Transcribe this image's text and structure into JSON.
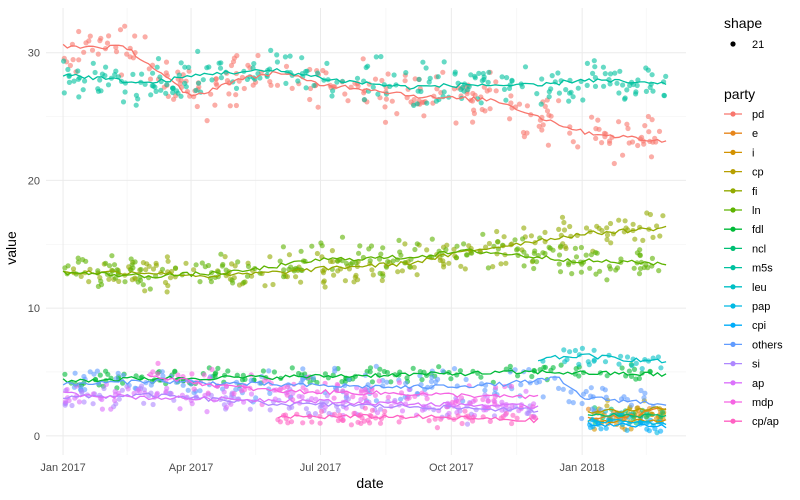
{
  "chart_data": {
    "type": "scatter",
    "xlabel": "date",
    "ylabel": "value",
    "x_ticks": [
      "Jan 2017",
      "Apr 2017",
      "Jul 2017",
      "Oct 2017",
      "Jan 2018"
    ],
    "x_tick_dates": [
      "2017-01-01",
      "2017-04-01",
      "2017-07-01",
      "2017-10-01",
      "2018-01-01"
    ],
    "xlim": [
      "2016-12-20",
      "2018-03-15"
    ],
    "y_ticks": [
      "0",
      "10",
      "20",
      "30"
    ],
    "ylim": [
      -1.5,
      33.5
    ],
    "grid": true,
    "legend_position": "right",
    "legend_shape": {
      "title": "shape",
      "entries": [
        "21"
      ]
    },
    "legend_party": {
      "title": "party",
      "entries": [
        "pd",
        "e",
        "i",
        "cp",
        "fi",
        "ln",
        "fdl",
        "ncl",
        "m5s",
        "leu",
        "pap",
        "cpi",
        "others",
        "si",
        "ap",
        "mdp",
        "cp/ap"
      ]
    },
    "series": [
      {
        "name": "pd",
        "color": "#F8766D",
        "trend": [
          [
            "2017-01-01",
            30.5
          ],
          [
            "2017-02-15",
            30.4
          ],
          [
            "2017-03-15",
            28.0
          ],
          [
            "2017-04-01",
            26.5
          ],
          [
            "2017-05-01",
            27.8
          ],
          [
            "2017-06-01",
            28.5
          ],
          [
            "2017-07-01",
            27.5
          ],
          [
            "2017-08-01",
            27.2
          ],
          [
            "2017-09-15",
            26.5
          ],
          [
            "2017-11-01",
            26.3
          ],
          [
            "2017-12-01",
            25.0
          ],
          [
            "2018-01-01",
            23.8
          ],
          [
            "2018-03-01",
            23.0
          ]
        ]
      },
      {
        "name": "e",
        "color": "#E7861B",
        "trend": [
          [
            "2018-01-05",
            1.5
          ],
          [
            "2018-02-01",
            1.5
          ],
          [
            "2018-03-01",
            2.2
          ]
        ]
      },
      {
        "name": "i",
        "color": "#D39200",
        "trend": [
          [
            "2018-01-05",
            1.2
          ],
          [
            "2018-02-01",
            1.1
          ],
          [
            "2018-03-01",
            1.3
          ]
        ]
      },
      {
        "name": "cp",
        "color": "#B79F00",
        "trend": [
          [
            "2018-01-05",
            1.9
          ],
          [
            "2018-02-01",
            2.0
          ],
          [
            "2018-03-01",
            2.2
          ]
        ]
      },
      {
        "name": "fi",
        "color": "#93AA00",
        "trend": [
          [
            "2017-01-01",
            12.8
          ],
          [
            "2017-03-01",
            12.8
          ],
          [
            "2017-04-15",
            12.5
          ],
          [
            "2017-06-01",
            12.8
          ],
          [
            "2017-07-15",
            13.2
          ],
          [
            "2017-09-01",
            13.5
          ],
          [
            "2017-10-15",
            14.5
          ],
          [
            "2017-12-01",
            15.3
          ],
          [
            "2018-01-01",
            15.8
          ],
          [
            "2018-03-01",
            16.3
          ]
        ]
      },
      {
        "name": "ln",
        "color": "#5EB300",
        "trend": [
          [
            "2017-01-01",
            12.8
          ],
          [
            "2017-03-01",
            12.5
          ],
          [
            "2017-05-01",
            12.8
          ],
          [
            "2017-07-01",
            13.8
          ],
          [
            "2017-09-01",
            14.0
          ],
          [
            "2017-10-15",
            14.5
          ],
          [
            "2017-12-01",
            14.0
          ],
          [
            "2018-01-01",
            13.7
          ],
          [
            "2018-03-01",
            13.5
          ]
        ]
      },
      {
        "name": "fdl",
        "color": "#00BA38",
        "trend": [
          [
            "2017-01-01",
            4.3
          ],
          [
            "2017-03-01",
            4.5
          ],
          [
            "2017-06-01",
            4.6
          ],
          [
            "2017-09-01",
            4.8
          ],
          [
            "2017-12-01",
            5.0
          ],
          [
            "2018-03-01",
            4.8
          ]
        ]
      },
      {
        "name": "ncl",
        "color": "#00BF74",
        "trend": [
          [
            "2018-01-05",
            1.6
          ],
          [
            "2018-03-01",
            1.6
          ]
        ]
      },
      {
        "name": "m5s",
        "color": "#00C19F",
        "trend": [
          [
            "2017-01-01",
            28.3
          ],
          [
            "2017-03-01",
            27.6
          ],
          [
            "2017-04-15",
            28.4
          ],
          [
            "2017-06-01",
            28.6
          ],
          [
            "2017-07-15",
            27.8
          ],
          [
            "2017-09-01",
            27.3
          ],
          [
            "2017-10-15",
            27.5
          ],
          [
            "2017-12-01",
            27.4
          ],
          [
            "2018-01-01",
            27.9
          ],
          [
            "2018-03-01",
            27.5
          ]
        ]
      },
      {
        "name": "leu",
        "color": "#00BFC4",
        "trend": [
          [
            "2017-12-01",
            6.0
          ],
          [
            "2018-01-01",
            6.3
          ],
          [
            "2018-02-01",
            6.0
          ],
          [
            "2018-03-01",
            5.8
          ]
        ]
      },
      {
        "name": "pap",
        "color": "#00B9E3",
        "trend": [
          [
            "2018-01-05",
            1.2
          ],
          [
            "2018-03-01",
            1.0
          ]
        ]
      },
      {
        "name": "cpi",
        "color": "#00ADFA",
        "trend": [
          [
            "2018-01-05",
            0.9
          ],
          [
            "2018-03-01",
            0.8
          ]
        ]
      },
      {
        "name": "others",
        "color": "#619CFF",
        "trend": [
          [
            "2017-01-01",
            4.0
          ],
          [
            "2017-03-01",
            4.3
          ],
          [
            "2017-06-01",
            4.0
          ],
          [
            "2017-09-01",
            3.8
          ],
          [
            "2017-11-01",
            4.0
          ],
          [
            "2017-12-15",
            4.5
          ],
          [
            "2018-01-01",
            3.0
          ],
          [
            "2018-03-01",
            2.5
          ]
        ]
      },
      {
        "name": "si",
        "color": "#AE87FF",
        "trend": [
          [
            "2017-01-01",
            3.0
          ],
          [
            "2017-03-01",
            3.2
          ],
          [
            "2017-06-01",
            2.5
          ],
          [
            "2017-09-01",
            2.3
          ],
          [
            "2017-12-01",
            2.0
          ]
        ]
      },
      {
        "name": "ap",
        "color": "#DB72FB",
        "trend": [
          [
            "2017-01-01",
            3.3
          ],
          [
            "2017-03-01",
            3.0
          ],
          [
            "2017-06-01",
            2.8
          ],
          [
            "2017-09-01",
            2.5
          ],
          [
            "2017-12-01",
            2.3
          ]
        ]
      },
      {
        "name": "mdp",
        "color": "#F564E3",
        "trend": [
          [
            "2017-03-01",
            4.8
          ],
          [
            "2017-04-15",
            4.0
          ],
          [
            "2017-06-01",
            3.5
          ],
          [
            "2017-09-01",
            3.3
          ],
          [
            "2017-12-01",
            3.0
          ]
        ]
      },
      {
        "name": "cp/ap",
        "color": "#FF61C3",
        "trend": [
          [
            "2017-06-01",
            1.5
          ],
          [
            "2017-09-01",
            1.5
          ],
          [
            "2017-12-01",
            1.2
          ]
        ]
      }
    ]
  }
}
